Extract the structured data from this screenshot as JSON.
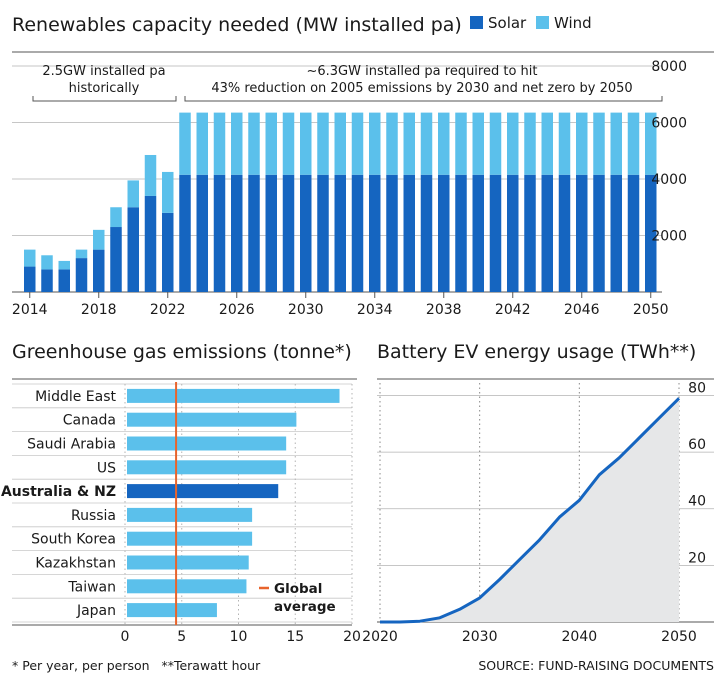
{
  "colors": {
    "solar": "#1565c0",
    "wind": "#5bc0eb",
    "highlight": "#1565c0",
    "bar": "#5bc0eb",
    "global_line": "#e8642c",
    "ev_line": "#1565c0",
    "ev_area": "#e6e7e8",
    "grid": "#b3b3b3"
  },
  "footer": {
    "note": "* Per year, per person   **Terawatt hour",
    "source": "SOURCE: FUND-RAISING DOCUMENTS"
  },
  "chart_data": [
    {
      "id": "renewables",
      "type": "bar",
      "stacked": true,
      "title": "Renewables capacity needed (MW installed pa)",
      "legend": [
        {
          "name": "Solar"
        },
        {
          "name": "Wind"
        }
      ],
      "legend_position": "top-right",
      "x": [
        2014,
        2015,
        2016,
        2017,
        2018,
        2019,
        2020,
        2021,
        2022,
        2023,
        2024,
        2025,
        2026,
        2027,
        2028,
        2029,
        2030,
        2031,
        2032,
        2033,
        2034,
        2035,
        2036,
        2037,
        2038,
        2039,
        2040,
        2041,
        2042,
        2043,
        2044,
        2045,
        2046,
        2047,
        2048,
        2049,
        2050
      ],
      "x_tick_labels": [
        "2014",
        "2018",
        "2022",
        "2026",
        "2030",
        "2034",
        "2038",
        "2042",
        "2046",
        "2050"
      ],
      "series": [
        {
          "name": "Solar",
          "values": [
            900,
            800,
            800,
            1200,
            1500,
            2300,
            3000,
            3400,
            2800,
            4150,
            4150,
            4150,
            4150,
            4150,
            4150,
            4150,
            4150,
            4150,
            4150,
            4150,
            4150,
            4150,
            4150,
            4150,
            4150,
            4150,
            4150,
            4150,
            4150,
            4150,
            4150,
            4150,
            4150,
            4150,
            4150,
            4150,
            4150
          ]
        },
        {
          "name": "Wind",
          "values": [
            600,
            500,
            300,
            300,
            700,
            700,
            950,
            1450,
            1450,
            2200,
            2200,
            2200,
            2200,
            2200,
            2200,
            2200,
            2200,
            2200,
            2200,
            2200,
            2200,
            2200,
            2200,
            2200,
            2200,
            2200,
            2200,
            2200,
            2200,
            2200,
            2200,
            2200,
            2200,
            2200,
            2200,
            2200,
            2200
          ]
        }
      ],
      "y_ticks": [
        "2000",
        "4000",
        "6000",
        "8000"
      ],
      "ylim": [
        0,
        8000
      ],
      "grid": true,
      "annotations": [
        {
          "lines": [
            "2.5GW installed pa",
            "historically"
          ],
          "from": 2014,
          "to": 2022
        },
        {
          "lines": [
            "~6.3GW installed pa required to hit",
            "43% reduction on 2005 emissions by 2030 and net zero by 2050"
          ],
          "from": 2023,
          "to": 2050
        }
      ]
    },
    {
      "id": "emissions",
      "type": "bar",
      "orientation": "horizontal",
      "title": "Greenhouse gas emissions (tonne*)",
      "categories": [
        "Middle East",
        "Canada",
        "Saudi Arabia",
        "US",
        "Australia & NZ",
        "Russia",
        "South Korea",
        "Kazakhstan",
        "Taiwan",
        "Japan"
      ],
      "values": [
        18.9,
        15.1,
        14.2,
        14.2,
        13.5,
        11.2,
        11.2,
        10.9,
        10.7,
        8.1
      ],
      "highlight": "Australia & NZ",
      "x_ticks": [
        "0",
        "5",
        "10",
        "15",
        "20"
      ],
      "xlim": [
        -2,
        20
      ],
      "reference": {
        "value": 4.5,
        "label_lines": [
          "Global",
          "average"
        ]
      },
      "grid": true
    },
    {
      "id": "battery_ev",
      "type": "area",
      "title": "Battery EV energy usage (TWh**)",
      "x": [
        2020,
        2022,
        2024,
        2026,
        2028,
        2030,
        2032,
        2034,
        2036,
        2038,
        2040,
        2042,
        2044,
        2046,
        2048,
        2050
      ],
      "values": [
        0,
        0,
        0.3,
        1.5,
        4.5,
        8.5,
        15,
        22,
        29,
        37,
        43,
        52,
        58,
        65,
        72,
        79
      ],
      "x_ticks": [
        "2020",
        "2030",
        "2040",
        "2050"
      ],
      "y_ticks": [
        "20",
        "40",
        "60",
        "80"
      ],
      "ylim": [
        0,
        83
      ],
      "xlim": [
        2020,
        2050
      ],
      "grid": true
    }
  ]
}
